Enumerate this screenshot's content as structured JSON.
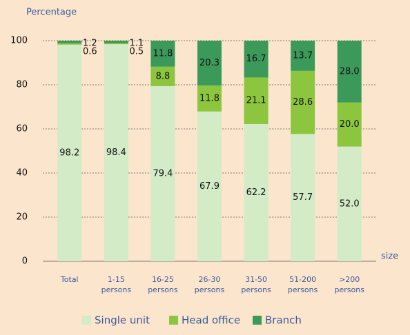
{
  "chart_data": {
    "type": "stacked_bar",
    "ylabel": "Percentage",
    "xlabel": "size",
    "categories": [
      "Total",
      "1-15 persons",
      "16-25 persons",
      "26-30 persons",
      "31-50 persons",
      "51-200 persons",
      ">200 persons"
    ],
    "series": [
      {
        "name": "Single unit",
        "color": "#d3ebc7",
        "values": [
          98.2,
          98.4,
          79.4,
          67.9,
          62.2,
          57.7,
          52.0
        ],
        "value_labels": [
          "98.2",
          "98.4",
          "79.4",
          "67.9",
          "62.2",
          "57.7",
          "52.0"
        ]
      },
      {
        "name": "Head office",
        "color": "#8cc63e",
        "values": [
          0.6,
          0.5,
          8.8,
          11.8,
          21.1,
          28.6,
          20.0
        ],
        "value_labels": [
          "0.6",
          "0.5",
          "8.8",
          "11.8",
          "21.1",
          "28.6",
          "20.0"
        ]
      },
      {
        "name": "Branch",
        "color": "#3b9a5a",
        "values": [
          1.2,
          1.1,
          11.8,
          20.3,
          16.7,
          13.7,
          28.0
        ],
        "value_labels": [
          "1.2",
          "1.1",
          "11.8",
          "20.3",
          "16.7",
          "13.7",
          "28.0"
        ]
      }
    ],
    "ylim": [
      0,
      100
    ],
    "yticks": [
      0,
      20,
      40,
      60,
      80,
      100
    ],
    "grid": true,
    "legend": "bottom"
  }
}
